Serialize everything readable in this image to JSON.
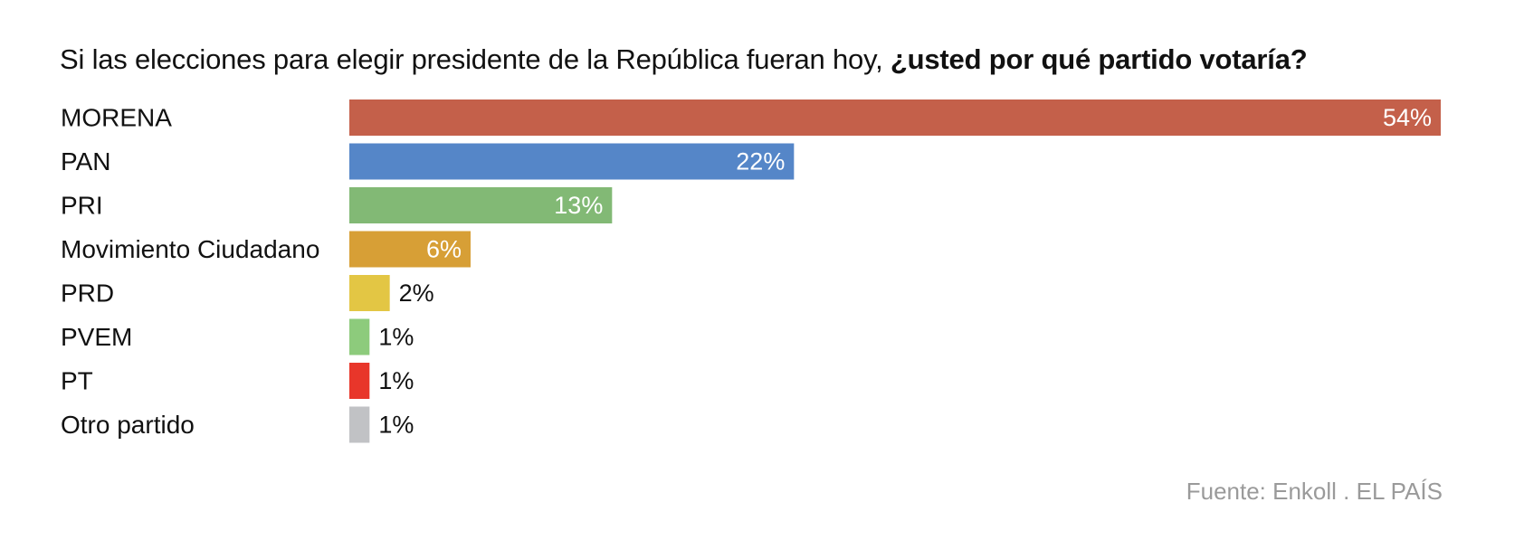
{
  "chart_data": {
    "type": "bar",
    "orientation": "horizontal",
    "title_regular": "Si las elecciones para elegir presidente de la República fueran hoy, ",
    "title_bold": "¿usted por qué partido votaría?",
    "categories": [
      "MORENA",
      "PAN",
      "PRI",
      "Movimiento Ciudadano",
      "PRD",
      "PVEM",
      "PT",
      "Otro partido"
    ],
    "values": [
      54,
      22,
      13,
      6,
      2,
      1,
      1,
      1
    ],
    "value_labels": [
      "54%",
      "22%",
      "13%",
      "6%",
      "2%",
      "1%",
      "1%",
      "1%"
    ],
    "colors": [
      "#c4604a",
      "#5586c8",
      "#82b975",
      "#d79f36",
      "#e3c644",
      "#8dcb7c",
      "#e8362a",
      "#c1c2c5"
    ],
    "xlim": [
      0,
      54
    ],
    "grid": false,
    "legend": false
  },
  "source": "Fuente: Enkoll . EL PAÍS"
}
